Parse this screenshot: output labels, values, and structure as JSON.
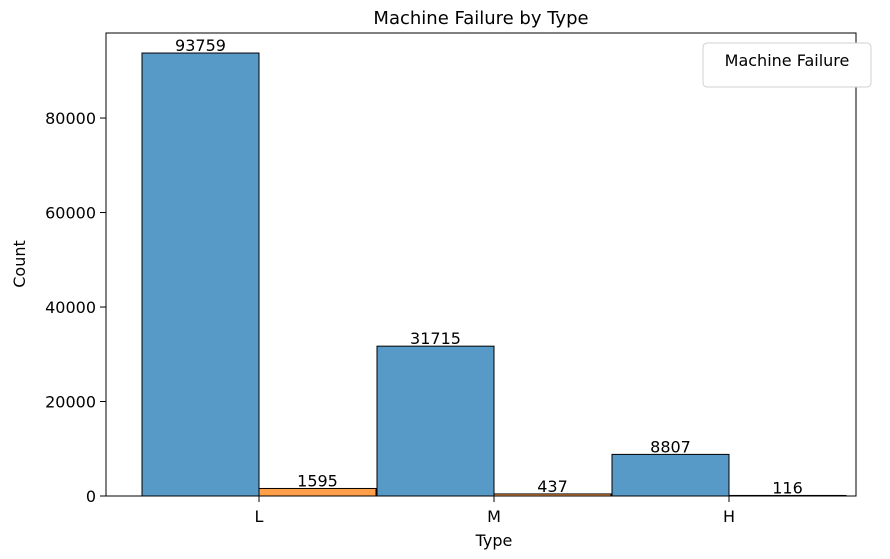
{
  "chart_data": {
    "type": "bar",
    "title": "Machine Failure by Type",
    "xlabel": "Type",
    "ylabel": "Count",
    "categories": [
      "L",
      "M",
      "H"
    ],
    "series": [
      {
        "values": [
          93759,
          31715,
          8807
        ],
        "color": "#5799c7"
      },
      {
        "values": [
          1595,
          437,
          116
        ],
        "color": "#ff9f4a"
      }
    ],
    "ylim": [
      0,
      98000
    ],
    "yticks": [
      0,
      20000,
      40000,
      60000,
      80000
    ],
    "legend": {
      "title": "Machine Failure",
      "position": "top-right"
    },
    "grid": false
  }
}
